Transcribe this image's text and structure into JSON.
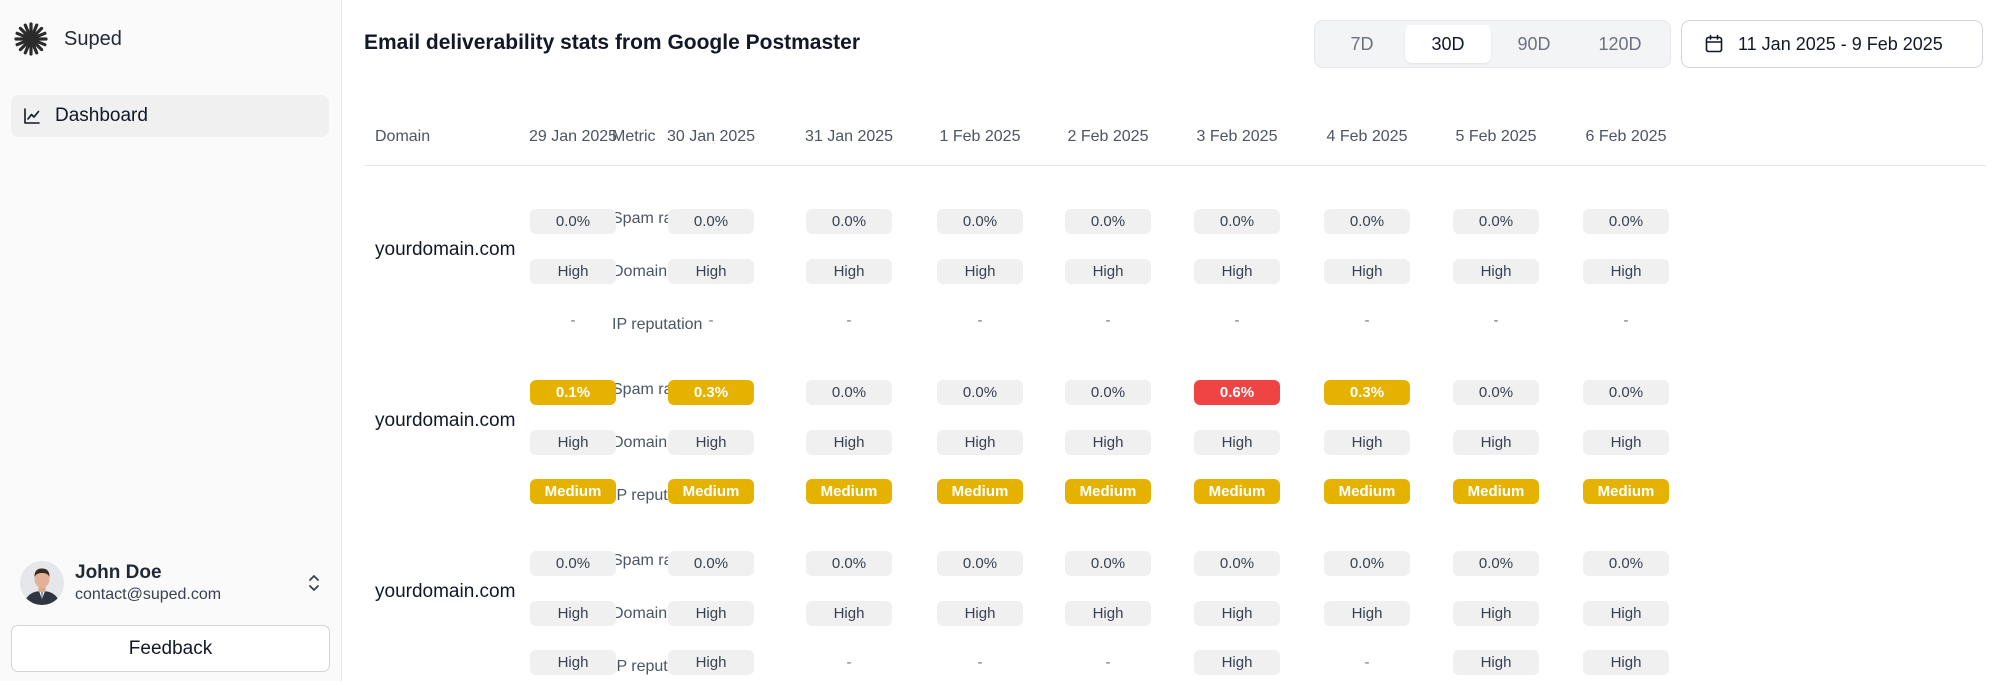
{
  "brand": {
    "name": "Suped"
  },
  "sidebar": {
    "items": [
      {
        "label": "Dashboard",
        "icon": "chart-line-icon"
      }
    ]
  },
  "user": {
    "name": "John Doe",
    "email": "contact@suped.com"
  },
  "feedback_label": "Feedback",
  "header": {
    "title": "Email deliverability stats from Google Postmaster",
    "ranges": [
      {
        "label": "7D",
        "active": false
      },
      {
        "label": "30D",
        "active": true
      },
      {
        "label": "90D",
        "active": false
      },
      {
        "label": "120D",
        "active": false
      }
    ],
    "date_range": "11 Jan 2025 - 9 Feb 2025"
  },
  "table": {
    "col_domain": "Domain",
    "col_metric": "Metric",
    "dates": [
      "29 Jan 2025",
      "30 Jan 2025",
      "31 Jan 2025",
      "1 Feb 2025",
      "2 Feb 2025",
      "3 Feb 2025",
      "4 Feb 2025",
      "5 Feb 2025",
      "6 Feb 2025"
    ],
    "groups": [
      {
        "domain": "yourdomain.com",
        "rows": [
          {
            "metric": "Spam rate",
            "values": [
              "0.0%",
              "0.0%",
              "0.0%",
              "0.0%",
              "0.0%",
              "0.0%",
              "0.0%",
              "0.0%",
              "0.0%"
            ],
            "status": [
              "neutral",
              "neutral",
              "neutral",
              "neutral",
              "neutral",
              "neutral",
              "neutral",
              "neutral",
              "neutral"
            ]
          },
          {
            "metric": "Domain reputation",
            "values": [
              "High",
              "High",
              "High",
              "High",
              "High",
              "High",
              "High",
              "High",
              "High"
            ],
            "status": [
              "neutral",
              "neutral",
              "neutral",
              "neutral",
              "neutral",
              "neutral",
              "neutral",
              "neutral",
              "neutral"
            ]
          },
          {
            "metric": "IP reputation",
            "values": [
              "-",
              "-",
              "-",
              "-",
              "-",
              "-",
              "-",
              "-",
              "-"
            ],
            "status": [
              "empty",
              "empty",
              "empty",
              "empty",
              "empty",
              "empty",
              "empty",
              "empty",
              "empty"
            ]
          }
        ]
      },
      {
        "domain": "yourdomain.com",
        "rows": [
          {
            "metric": "Spam rate",
            "values": [
              "0.1%",
              "0.3%",
              "0.0%",
              "0.0%",
              "0.0%",
              "0.6%",
              "0.3%",
              "0.0%",
              "0.0%"
            ],
            "status": [
              "warn",
              "warn",
              "neutral",
              "neutral",
              "neutral",
              "bad",
              "warn",
              "neutral",
              "neutral"
            ]
          },
          {
            "metric": "Domain reputation",
            "values": [
              "High",
              "High",
              "High",
              "High",
              "High",
              "High",
              "High",
              "High",
              "High"
            ],
            "status": [
              "neutral",
              "neutral",
              "neutral",
              "neutral",
              "neutral",
              "neutral",
              "neutral",
              "neutral",
              "neutral"
            ]
          },
          {
            "metric": "IP reputation",
            "values": [
              "Medium",
              "Medium",
              "Medium",
              "Medium",
              "Medium",
              "Medium",
              "Medium",
              "Medium",
              "Medium"
            ],
            "status": [
              "warn",
              "warn",
              "warn",
              "warn",
              "warn",
              "warn",
              "warn",
              "warn",
              "warn"
            ]
          }
        ]
      },
      {
        "domain": "yourdomain.com",
        "rows": [
          {
            "metric": "Spam rate",
            "values": [
              "0.0%",
              "0.0%",
              "0.0%",
              "0.0%",
              "0.0%",
              "0.0%",
              "0.0%",
              "0.0%",
              "0.0%"
            ],
            "status": [
              "neutral",
              "neutral",
              "neutral",
              "neutral",
              "neutral",
              "neutral",
              "neutral",
              "neutral",
              "neutral"
            ]
          },
          {
            "metric": "Domain reputation",
            "values": [
              "High",
              "High",
              "High",
              "High",
              "High",
              "High",
              "High",
              "High",
              "High"
            ],
            "status": [
              "neutral",
              "neutral",
              "neutral",
              "neutral",
              "neutral",
              "neutral",
              "neutral",
              "neutral",
              "neutral"
            ]
          },
          {
            "metric": "IP reputation",
            "values": [
              "High",
              "High",
              "-",
              "-",
              "-",
              "High",
              "-",
              "High",
              "High"
            ],
            "status": [
              "neutral",
              "neutral",
              "empty",
              "empty",
              "empty",
              "neutral",
              "empty",
              "neutral",
              "neutral"
            ]
          }
        ]
      }
    ]
  },
  "colors": {
    "warn": "#e6b200",
    "bad": "#ef4444",
    "neutral": "#f0f0f1"
  }
}
